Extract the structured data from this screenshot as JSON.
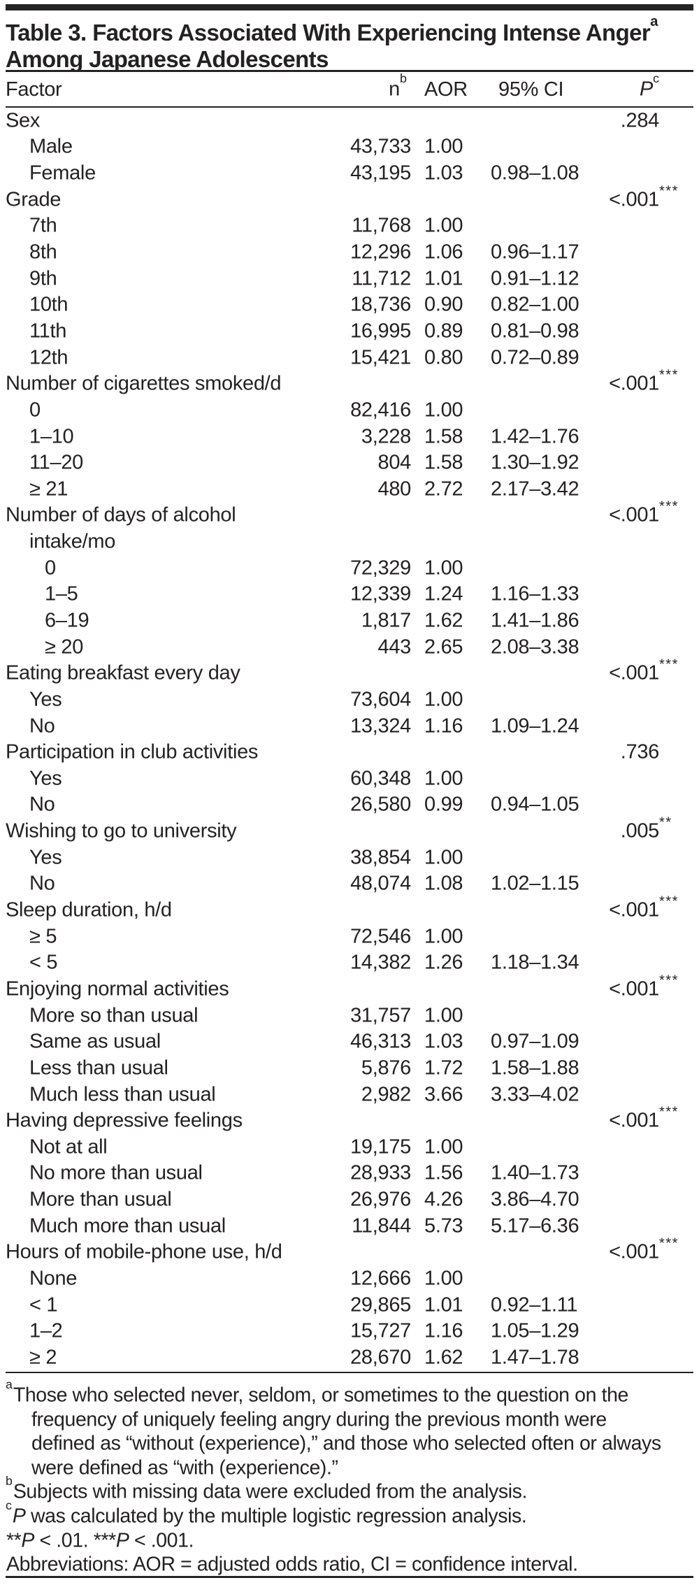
{
  "table": {
    "title_line1": "Table 3. Factors Associated With Experiencing Intense Anger",
    "title_sup": "a",
    "title_line2": "Among Japanese Adolescents",
    "columns": {
      "factor": "Factor",
      "n": "n",
      "n_sup": "b",
      "aor": "AOR",
      "ci": "95% CI",
      "p": "P",
      "p_sup": "c"
    },
    "ink_color": "#242122",
    "rows": [
      {
        "label": "Sex",
        "indent": 0,
        "n": "",
        "aor": "",
        "ci": "",
        "p": ".284",
        "stars": ""
      },
      {
        "label": "Male",
        "indent": 1,
        "n": "43,733",
        "aor": "1.00",
        "ci": "",
        "p": "",
        "stars": ""
      },
      {
        "label": "Female",
        "indent": 1,
        "n": "43,195",
        "aor": "1.03",
        "ci": "0.98–1.08",
        "p": "",
        "stars": ""
      },
      {
        "label": "Grade",
        "indent": 0,
        "n": "",
        "aor": "",
        "ci": "",
        "p": "<.001",
        "stars": "***"
      },
      {
        "label": "7th",
        "indent": 1,
        "n": "11,768",
        "aor": "1.00",
        "ci": "",
        "p": "",
        "stars": ""
      },
      {
        "label": "8th",
        "indent": 1,
        "n": "12,296",
        "aor": "1.06",
        "ci": "0.96–1.17",
        "p": "",
        "stars": ""
      },
      {
        "label": "9th",
        "indent": 1,
        "n": "11,712",
        "aor": "1.01",
        "ci": "0.91–1.12",
        "p": "",
        "stars": ""
      },
      {
        "label": "10th",
        "indent": 1,
        "n": "18,736",
        "aor": "0.90",
        "ci": "0.82–1.00",
        "p": "",
        "stars": ""
      },
      {
        "label": "11th",
        "indent": 1,
        "n": "16,995",
        "aor": "0.89",
        "ci": "0.81–0.98",
        "p": "",
        "stars": ""
      },
      {
        "label": "12th",
        "indent": 1,
        "n": "15,421",
        "aor": "0.80",
        "ci": "0.72–0.89",
        "p": "",
        "stars": ""
      },
      {
        "label": "Number of cigarettes smoked/d",
        "indent": 0,
        "n": "",
        "aor": "",
        "ci": "",
        "p": "<.001",
        "stars": "***"
      },
      {
        "label": "0",
        "indent": 1,
        "n": "82,416",
        "aor": "1.00",
        "ci": "",
        "p": "",
        "stars": ""
      },
      {
        "label": "1–10",
        "indent": 1,
        "n": "3,228",
        "aor": "1.58",
        "ci": "1.42–1.76",
        "p": "",
        "stars": ""
      },
      {
        "label": "11–20",
        "indent": 1,
        "n": "804",
        "aor": "1.58",
        "ci": "1.30–1.92",
        "p": "",
        "stars": ""
      },
      {
        "label": "≥ 21",
        "indent": 1,
        "n": "480",
        "aor": "2.72",
        "ci": "2.17–3.42",
        "p": "",
        "stars": ""
      },
      {
        "label": "Number of days of alcohol",
        "indent": 0,
        "n": "",
        "aor": "",
        "ci": "",
        "p": "<.001",
        "stars": "***"
      },
      {
        "label": "intake/mo",
        "indent": 1,
        "n": "",
        "aor": "",
        "ci": "",
        "p": "",
        "stars": ""
      },
      {
        "label": "0",
        "indent": 2,
        "n": "72,329",
        "aor": "1.00",
        "ci": "",
        "p": "",
        "stars": ""
      },
      {
        "label": "1–5",
        "indent": 2,
        "n": "12,339",
        "aor": "1.24",
        "ci": "1.16–1.33",
        "p": "",
        "stars": ""
      },
      {
        "label": "6–19",
        "indent": 2,
        "n": "1,817",
        "aor": "1.62",
        "ci": "1.41–1.86",
        "p": "",
        "stars": ""
      },
      {
        "label": "≥ 20",
        "indent": 2,
        "n": "443",
        "aor": "2.65",
        "ci": "2.08–3.38",
        "p": "",
        "stars": ""
      },
      {
        "label": "Eating breakfast every day",
        "indent": 0,
        "n": "",
        "aor": "",
        "ci": "",
        "p": "<.001",
        "stars": "***"
      },
      {
        "label": "Yes",
        "indent": 1,
        "n": "73,604",
        "aor": "1.00",
        "ci": "",
        "p": "",
        "stars": ""
      },
      {
        "label": "No",
        "indent": 1,
        "n": "13,324",
        "aor": "1.16",
        "ci": "1.09–1.24",
        "p": "",
        "stars": ""
      },
      {
        "label": "Participation in club activities",
        "indent": 0,
        "n": "",
        "aor": "",
        "ci": "",
        "p": ".736",
        "stars": ""
      },
      {
        "label": "Yes",
        "indent": 1,
        "n": "60,348",
        "aor": "1.00",
        "ci": "",
        "p": "",
        "stars": ""
      },
      {
        "label": "No",
        "indent": 1,
        "n": "26,580",
        "aor": "0.99",
        "ci": "0.94–1.05",
        "p": "",
        "stars": ""
      },
      {
        "label": "Wishing to go to university",
        "indent": 0,
        "n": "",
        "aor": "",
        "ci": "",
        "p": ".005",
        "stars": "**"
      },
      {
        "label": "Yes",
        "indent": 1,
        "n": "38,854",
        "aor": "1.00",
        "ci": "",
        "p": "",
        "stars": ""
      },
      {
        "label": "No",
        "indent": 1,
        "n": "48,074",
        "aor": "1.08",
        "ci": "1.02–1.15",
        "p": "",
        "stars": ""
      },
      {
        "label": "Sleep duration, h/d",
        "indent": 0,
        "n": "",
        "aor": "",
        "ci": "",
        "p": "<.001",
        "stars": "***"
      },
      {
        "label": "≥ 5",
        "indent": 1,
        "n": "72,546",
        "aor": "1.00",
        "ci": "",
        "p": "",
        "stars": ""
      },
      {
        "label": "< 5",
        "indent": 1,
        "n": "14,382",
        "aor": "1.26",
        "ci": "1.18–1.34",
        "p": "",
        "stars": ""
      },
      {
        "label": "Enjoying normal activities",
        "indent": 0,
        "n": "",
        "aor": "",
        "ci": "",
        "p": "<.001",
        "stars": "***"
      },
      {
        "label": "More so than usual",
        "indent": 1,
        "n": "31,757",
        "aor": "1.00",
        "ci": "",
        "p": "",
        "stars": ""
      },
      {
        "label": "Same as usual",
        "indent": 1,
        "n": "46,313",
        "aor": "1.03",
        "ci": "0.97–1.09",
        "p": "",
        "stars": ""
      },
      {
        "label": "Less than usual",
        "indent": 1,
        "n": "5,876",
        "aor": "1.72",
        "ci": "1.58–1.88",
        "p": "",
        "stars": ""
      },
      {
        "label": "Much less than usual",
        "indent": 1,
        "n": "2,982",
        "aor": "3.66",
        "ci": "3.33–4.02",
        "p": "",
        "stars": ""
      },
      {
        "label": "Having depressive feelings",
        "indent": 0,
        "n": "",
        "aor": "",
        "ci": "",
        "p": "<.001",
        "stars": "***"
      },
      {
        "label": "Not at all",
        "indent": 1,
        "n": "19,175",
        "aor": "1.00",
        "ci": "",
        "p": "",
        "stars": ""
      },
      {
        "label": "No more than usual",
        "indent": 1,
        "n": "28,933",
        "aor": "1.56",
        "ci": "1.40–1.73",
        "p": "",
        "stars": ""
      },
      {
        "label": "More than usual",
        "indent": 1,
        "n": "26,976",
        "aor": "4.26",
        "ci": "3.86–4.70",
        "p": "",
        "stars": ""
      },
      {
        "label": "Much more than usual",
        "indent": 1,
        "n": "11,844",
        "aor": "5.73",
        "ci": "5.17–6.36",
        "p": "",
        "stars": ""
      },
      {
        "label": "Hours of mobile-phone use, h/d",
        "indent": 0,
        "n": "",
        "aor": "",
        "ci": "",
        "p": "<.001",
        "stars": "***"
      },
      {
        "label": "None",
        "indent": 1,
        "n": "12,666",
        "aor": "1.00",
        "ci": "",
        "p": "",
        "stars": ""
      },
      {
        "label": "< 1",
        "indent": 1,
        "n": "29,865",
        "aor": "1.01",
        "ci": "0.92–1.11",
        "p": "",
        "stars": ""
      },
      {
        "label": "1–2",
        "indent": 1,
        "n": "15,727",
        "aor": "1.16",
        "ci": "1.05–1.29",
        "p": "",
        "stars": ""
      },
      {
        "label": "≥ 2",
        "indent": 1,
        "n": "28,670",
        "aor": "1.62",
        "ci": "1.47–1.78",
        "p": "",
        "stars": ""
      }
    ],
    "footnotes": [
      {
        "sup": "a",
        "cont": false,
        "text": "Those who selected never, seldom, or sometimes to the question on the"
      },
      {
        "sup": "",
        "cont": true,
        "text": "frequency of uniquely feeling angry during the previous month were"
      },
      {
        "sup": "",
        "cont": true,
        "text": "defined as “without (experience),” and those who selected often or always"
      },
      {
        "sup": "",
        "cont": true,
        "text": "were defined as “with (experience).”"
      },
      {
        "sup": "b",
        "cont": false,
        "text": "Subjects with missing data were excluded from the analysis."
      },
      {
        "sup": "c",
        "cont": false,
        "parts": [
          {
            "t": "P",
            "i": true
          },
          {
            "t": " was calculated by the multiple logistic regression analysis."
          }
        ]
      },
      {
        "sup": "",
        "cont": false,
        "parts": [
          {
            "t": "**"
          },
          {
            "t": "P",
            "i": true
          },
          {
            "t": " < .01.  "
          },
          {
            "t": "***"
          },
          {
            "t": "P",
            "i": true
          },
          {
            "t": " < .001."
          }
        ]
      },
      {
        "sup": "",
        "cont": false,
        "text": "Abbreviations: AOR = adjusted odds ratio, CI = confidence interval."
      }
    ]
  }
}
